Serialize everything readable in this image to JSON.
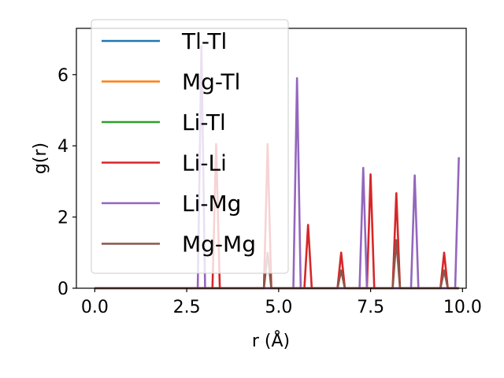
{
  "chart_data": {
    "type": "line",
    "title": "",
    "xlabel": "r (Å)",
    "ylabel": "g(r)",
    "xlim": [
      -0.5,
      10.1
    ],
    "ylim": [
      0,
      7.3
    ],
    "xticks": [
      0.0,
      2.5,
      5.0,
      7.5,
      10.0
    ],
    "xtick_labels": [
      "0.0",
      "2.5",
      "5.0",
      "7.5",
      "10.0"
    ],
    "yticks": [
      0,
      2,
      4,
      6
    ],
    "ytick_labels": [
      "0",
      "2",
      "4",
      "6"
    ],
    "grid": false,
    "legend_position": "top-left",
    "series": [
      {
        "name": "Tl-Tl",
        "color": "#1f77b4",
        "x": [
          0.0,
          9.9
        ],
        "y": [
          0,
          0
        ]
      },
      {
        "name": "Mg-Tl",
        "color": "#ff7f0e",
        "x": [
          0.0,
          9.9
        ],
        "y": [
          0,
          0
        ]
      },
      {
        "name": "Li-Tl",
        "color": "#2ca02c",
        "x": [
          0.0,
          9.9
        ],
        "y": [
          0,
          0
        ]
      },
      {
        "name": "Li-Li",
        "color": "#d62728",
        "x": [
          0.0,
          3.2,
          3.3,
          3.4,
          4.6,
          4.7,
          4.8,
          5.7,
          5.8,
          5.9,
          6.6,
          6.7,
          6.8,
          7.4,
          7.5,
          7.6,
          8.1,
          8.2,
          8.3,
          9.4,
          9.5,
          9.6,
          9.9
        ],
        "y": [
          0,
          0,
          4.05,
          0,
          0,
          4.05,
          0,
          0,
          1.78,
          0,
          0,
          1.0,
          0,
          0,
          3.2,
          0,
          0,
          2.67,
          0,
          0,
          1.0,
          0,
          0
        ]
      },
      {
        "name": "Li-Mg",
        "color": "#9467bd",
        "x": [
          0.0,
          2.8,
          2.9,
          3.0,
          5.4,
          5.5,
          5.6,
          7.2,
          7.3,
          7.4,
          8.6,
          8.7,
          8.8,
          9.8,
          9.9
        ],
        "y": [
          0,
          0,
          6.8,
          0,
          0,
          5.9,
          0,
          0,
          3.38,
          0,
          0,
          3.17,
          0,
          0,
          3.68
        ]
      },
      {
        "name": "Mg-Mg",
        "color": "#8c564b",
        "x": [
          0.0,
          4.6,
          4.7,
          4.8,
          6.6,
          6.7,
          6.8,
          8.1,
          8.2,
          8.3,
          9.4,
          9.5,
          9.6,
          9.9
        ],
        "y": [
          0,
          0,
          1.0,
          0,
          0,
          0.5,
          0,
          0,
          1.35,
          0,
          0,
          0.5,
          0,
          0
        ]
      }
    ]
  }
}
